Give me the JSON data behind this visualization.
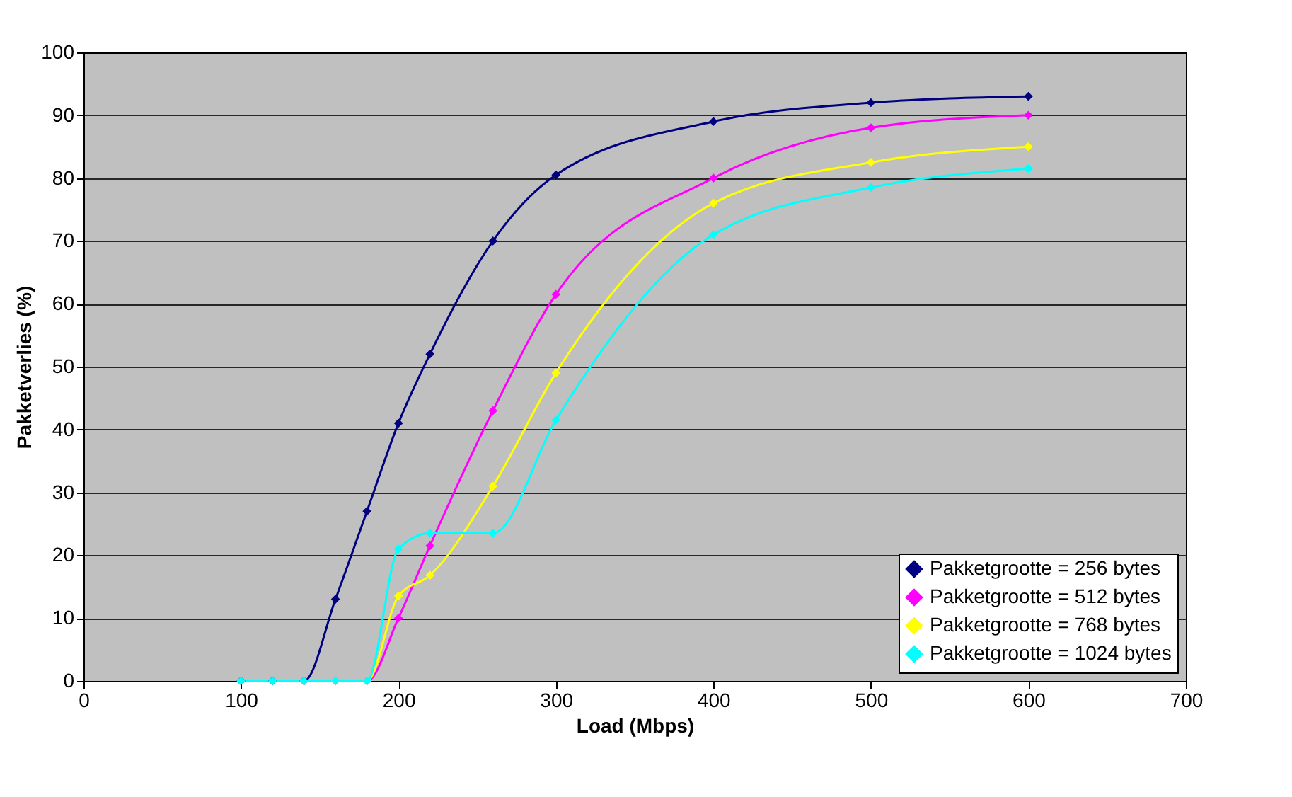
{
  "chart_data": {
    "type": "line",
    "xlabel": "Load (Mbps)",
    "ylabel": "Pakketverlies (%)",
    "x": [
      100,
      120,
      140,
      160,
      180,
      200,
      220,
      260,
      300,
      400,
      500,
      600
    ],
    "series": [
      {
        "name": "Pakketgrootte = 256 bytes",
        "color": "#000080",
        "values": [
          0,
          0,
          0,
          13,
          27,
          41,
          52,
          70,
          80.5,
          89,
          92,
          93
        ]
      },
      {
        "name": "Pakketgrootte = 512 bytes",
        "color": "#ff00ff",
        "values": [
          null,
          null,
          null,
          0,
          0,
          10,
          21.5,
          43,
          61.5,
          80,
          88,
          90
        ]
      },
      {
        "name": "Pakketgrootte = 768 bytes",
        "color": "#ffff00",
        "values": [
          null,
          null,
          null,
          0,
          0,
          13.5,
          16.8,
          31,
          49,
          76,
          82.5,
          85
        ]
      },
      {
        "name": "Pakketgrootte = 1024 bytes",
        "color": "#00ffff",
        "values": [
          0,
          0,
          0,
          0,
          0,
          21,
          23.5,
          23.5,
          41.5,
          71,
          78.5,
          81.5
        ]
      }
    ],
    "xlim": [
      0,
      700
    ],
    "xticks": [
      0,
      100,
      200,
      300,
      400,
      500,
      600,
      700
    ],
    "ylim": [
      0,
      100
    ],
    "yticks": [
      0,
      10,
      20,
      30,
      40,
      50,
      60,
      70,
      80,
      90,
      100
    ],
    "grid": "y",
    "legend": "bottom right",
    "marker": "diamond",
    "line_style": "solid"
  }
}
